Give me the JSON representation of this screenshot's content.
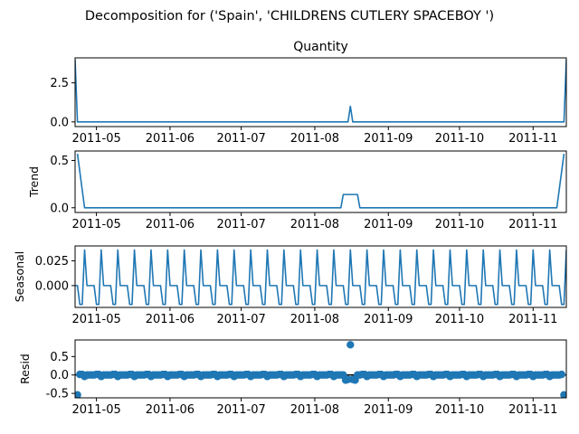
{
  "suptitle": "Decomposition for ('Spain', 'CHILDRENS CUTLERY SPACEBOY ')",
  "colors": {
    "line": "#1f77b4",
    "axis": "#000000",
    "zero": "#000000"
  },
  "chart_data": [
    {
      "type": "line",
      "title": "Quantity",
      "ylabel": "",
      "x_start": "2011-04-22",
      "x_end": "2011-11-15",
      "xticks": [
        "2011-05",
        "2011-06",
        "2011-07",
        "2011-08",
        "2011-09",
        "2011-10",
        "2011-11"
      ],
      "yticks": [
        "0.0",
        "2.5"
      ],
      "ylim": [
        -0.3,
        4.1
      ],
      "points": [
        [
          "2011-04-22",
          4.0
        ],
        [
          "2011-04-23",
          0.0
        ],
        [
          "2011-08-15",
          0.0
        ],
        [
          "2011-08-16",
          1.0
        ],
        [
          "2011-08-17",
          0.0
        ],
        [
          "2011-11-14",
          0.0
        ],
        [
          "2011-11-15",
          4.0
        ]
      ]
    },
    {
      "type": "line",
      "title": "",
      "ylabel": "Trend",
      "x_start": "2011-04-22",
      "x_end": "2011-11-15",
      "xticks": [
        "2011-05",
        "2011-06",
        "2011-07",
        "2011-08",
        "2011-09",
        "2011-10",
        "2011-11"
      ],
      "yticks": [
        "0.0",
        "0.5"
      ],
      "ylim": [
        -0.05,
        0.6
      ],
      "points": [
        [
          "2011-04-23",
          0.57
        ],
        [
          "2011-04-26",
          0.0
        ],
        [
          "2011-08-12",
          0.0
        ],
        [
          "2011-08-13",
          0.14
        ],
        [
          "2011-08-19",
          0.14
        ],
        [
          "2011-08-20",
          0.0
        ],
        [
          "2011-11-11",
          0.0
        ],
        [
          "2011-11-14",
          0.57
        ]
      ]
    },
    {
      "type": "line",
      "title": "",
      "ylabel": "Seasonal",
      "x_start": "2011-04-22",
      "x_end": "2011-11-15",
      "xticks": [
        "2011-05",
        "2011-06",
        "2011-07",
        "2011-08",
        "2011-09",
        "2011-10",
        "2011-11"
      ],
      "yticks": [
        "0.000",
        "0.025"
      ],
      "ylim": [
        -0.022,
        0.04
      ],
      "period_days": 7,
      "pattern_start": "2011-04-22",
      "pattern": [
        0.0,
        0.0,
        -0.019,
        -0.019,
        0.036,
        0.0,
        0.0
      ]
    },
    {
      "type": "scatter",
      "title": "",
      "ylabel": "Resid",
      "x_start": "2011-04-22",
      "x_end": "2011-11-15",
      "xticks": [
        "2011-05",
        "2011-06",
        "2011-07",
        "2011-08",
        "2011-09",
        "2011-10",
        "2011-11"
      ],
      "yticks": [
        "-0.5",
        "0.0",
        "0.5"
      ],
      "ylim": [
        -0.62,
        0.95
      ],
      "baseline": 0.0,
      "special_points": [
        [
          "2011-04-23",
          -0.54
        ],
        [
          "2011-08-14",
          -0.14
        ],
        [
          "2011-08-15",
          -0.12
        ],
        [
          "2011-08-16",
          0.82
        ],
        [
          "2011-08-17",
          -0.12
        ],
        [
          "2011-08-18",
          -0.14
        ],
        [
          "2011-11-14",
          -0.54
        ]
      ],
      "default_residuals": [
        0.0,
        0.0,
        0.015,
        0.015,
        -0.04,
        0.0,
        0.0
      ]
    }
  ]
}
